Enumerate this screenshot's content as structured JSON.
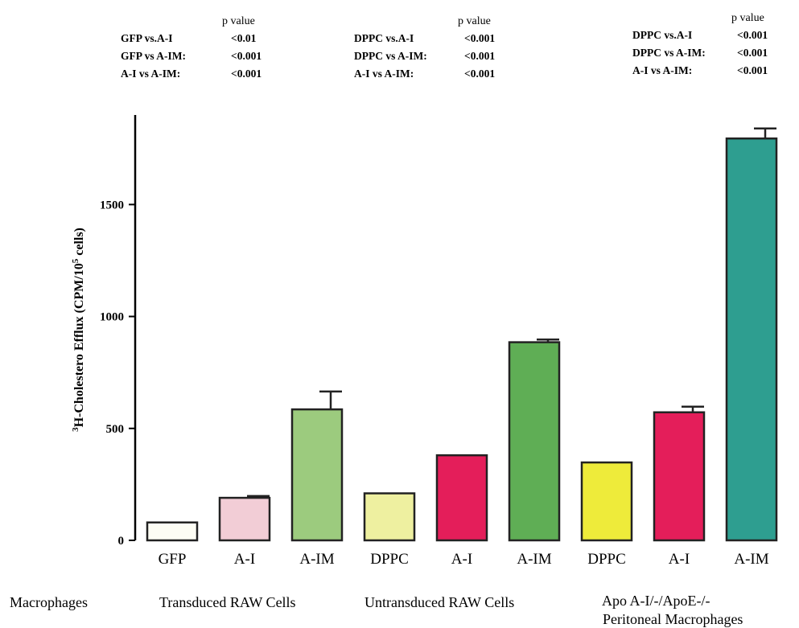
{
  "chart_data": {
    "type": "bar",
    "categories": [
      "GFP",
      "A-I",
      "A-IM",
      "DPPC",
      "A-I",
      "A-IM",
      "DPPC",
      "A-I",
      "A-IM"
    ],
    "values": [
      80,
      190,
      585,
      210,
      380,
      885,
      348,
      572,
      1795
    ],
    "errors": [
      0,
      8,
      80,
      0,
      0,
      12,
      0,
      25,
      45
    ],
    "colors": [
      "#fdfdf4",
      "#f2cdd6",
      "#9ccb7e",
      "#eef0a0",
      "#e41e5a",
      "#5fae55",
      "#eeeb3a",
      "#e41e5a",
      "#2e9e90"
    ],
    "ylabel_main": "H-Cholestero Efflux (CPM/10",
    "ylabel_sup1": "3",
    "ylabel_sup2": "5",
    "ylabel_end": " cells)",
    "yticks": [
      0,
      500,
      1000,
      1500
    ],
    "ylim": [
      0,
      1900
    ],
    "groups_label": "Macrophages",
    "groups": [
      {
        "label": "Transduced RAW Cells"
      },
      {
        "label": "Untransduced RAW Cells"
      },
      {
        "label": "Apo A-I/-/ApoE-/-",
        "label2": "Peritoneal Macrophages"
      }
    ],
    "pvalue_tables": [
      {
        "title": "p value",
        "rows": [
          [
            "GFP vs.A-I",
            "<0.01"
          ],
          [
            "GFP vs A-IM:",
            "<0.001"
          ],
          [
            "A-I vs A-IM:",
            "<0.001"
          ]
        ]
      },
      {
        "title": "p value",
        "rows": [
          [
            "DPPC vs.A-I",
            "<0.001"
          ],
          [
            "DPPC vs A-IM:",
            "<0.001"
          ],
          [
            "A-I vs A-IM:",
            "<0.001"
          ]
        ]
      },
      {
        "title": "p value",
        "rows": [
          [
            "DPPC vs.A-I",
            "<0.001"
          ],
          [
            "DPPC vs A-IM:",
            "<0.001"
          ],
          [
            "A-I vs A-IM:",
            "<0.001"
          ]
        ]
      }
    ]
  }
}
